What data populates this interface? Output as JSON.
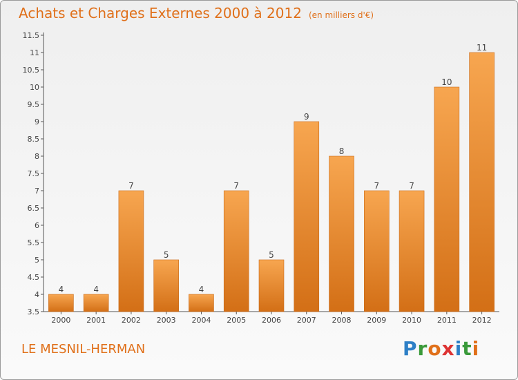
{
  "header": {
    "title": "Achats et Charges Externes 2000 à 2012",
    "unit": "(en milliers d'€)"
  },
  "footer": {
    "place": "LE MESNIL-HERMAN",
    "logo": [
      "P",
      "r",
      "o",
      "x",
      "i",
      "t",
      "i"
    ]
  },
  "colors": {
    "bar_top": "#f7a650",
    "bar_bottom": "#d36f16",
    "axis": "#555555",
    "title": "#e0701a"
  },
  "chart_data": {
    "type": "bar",
    "title": "Achats et Charges Externes 2000 à 2012",
    "categories": [
      "2000",
      "2001",
      "2002",
      "2003",
      "2004",
      "2005",
      "2006",
      "2007",
      "2008",
      "2009",
      "2010",
      "2011",
      "2012"
    ],
    "values": [
      4,
      4,
      7,
      5,
      4,
      7,
      5,
      9,
      8,
      7,
      7,
      10,
      11
    ],
    "data_labels": [
      "4",
      "4",
      "7",
      "5",
      "4",
      "7",
      "5",
      "9",
      "8",
      "7",
      "7",
      "10",
      "11"
    ],
    "ylim": [
      3.5,
      11.5
    ],
    "yticks": [
      "3.5",
      "4",
      "4.5",
      "5",
      "5.5",
      "6",
      "6.5",
      "7",
      "7.5",
      "8",
      "8.5",
      "9",
      "9.5",
      "10",
      "10.5",
      "11",
      "11.5"
    ],
    "xlabel": "",
    "ylabel": "",
    "grid": false
  }
}
